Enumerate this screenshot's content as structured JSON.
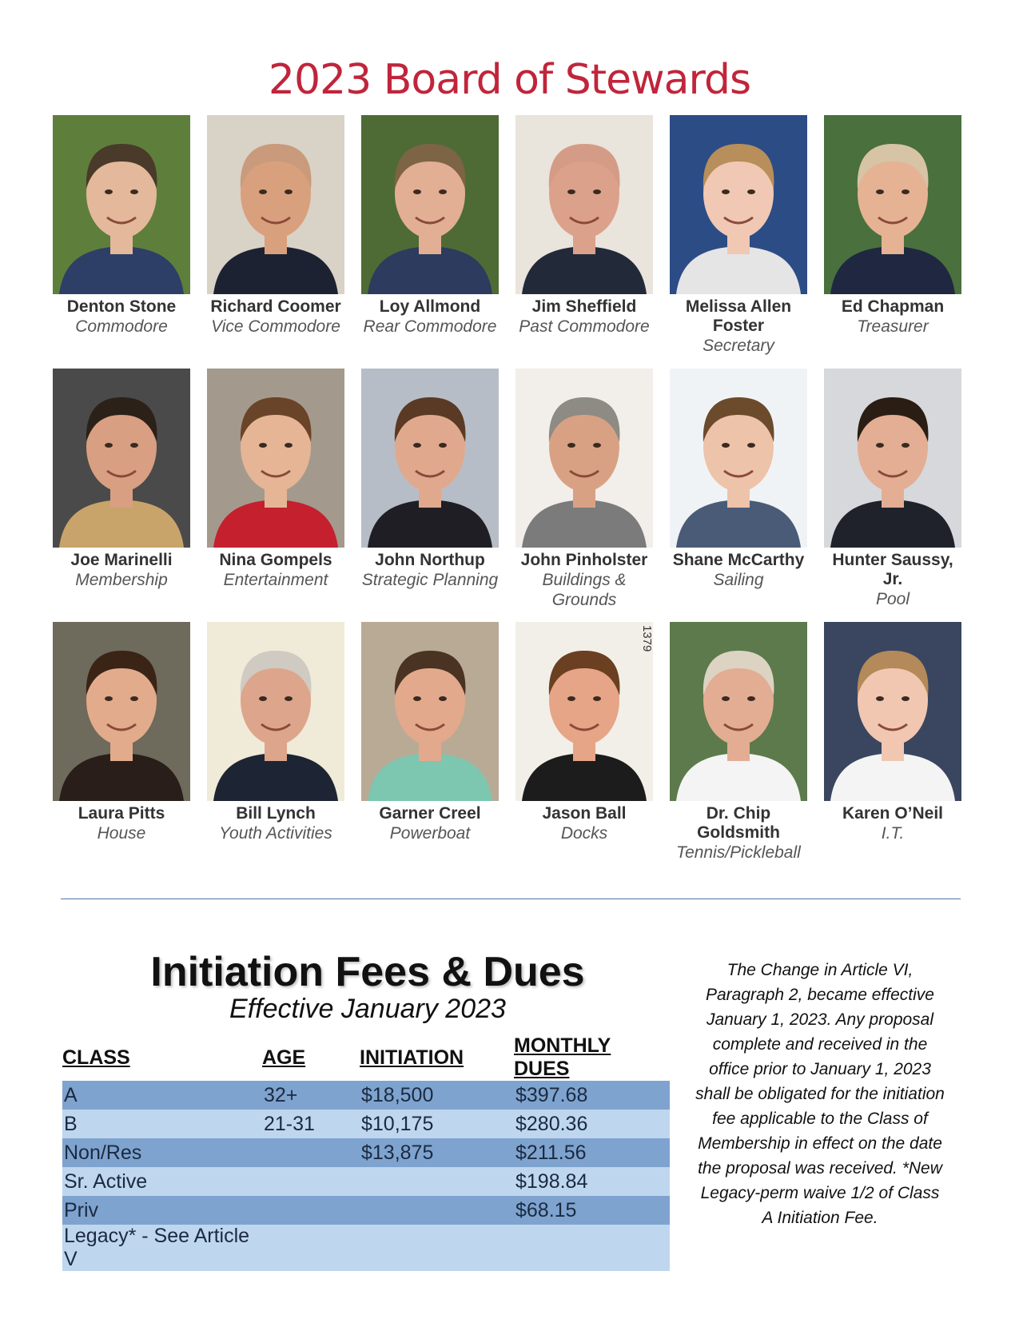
{
  "page_title": "2023 Board of Stewards",
  "side_code": "1379",
  "stewards": [
    {
      "name": "Denton Stone",
      "role": "Commodore",
      "bg": "#5e7f3b",
      "skin": "#e4b89b",
      "hair": "#4a3a2a",
      "shirt": "#2d3f66"
    },
    {
      "name": "Richard Coomer",
      "role": "Vice Commodore",
      "bg": "#d9d2c6",
      "skin": "#d9a07e",
      "hair": "#c99a7b",
      "shirt": "#1d2233"
    },
    {
      "name": "Loy Allmond",
      "role": "Rear Commodore",
      "bg": "#4e6b35",
      "skin": "#e2ae94",
      "hair": "#7c6444",
      "shirt": "#2c3b5e"
    },
    {
      "name": "Jim Sheffield",
      "role": "Past Commodore",
      "bg": "#e9e4dc",
      "skin": "#dca18a",
      "hair": "#d49c86",
      "shirt": "#222a3a"
    },
    {
      "name": "Melissa Allen Foster",
      "role": "Secretary",
      "bg": "#2c4c86",
      "skin": "#f0c8b3",
      "hair": "#b88e5a",
      "shirt": "#e5e5e5"
    },
    {
      "name": "Ed Chapman",
      "role": "Treasurer",
      "bg": "#49703d",
      "skin": "#e6b294",
      "hair": "#d7c3a6",
      "shirt": "#1f2840"
    },
    {
      "name": "Joe Marinelli",
      "role": "Membership",
      "bg": "#4a4a4a",
      "skin": "#d89f82",
      "hair": "#2b2118",
      "shirt": "#c8a46a"
    },
    {
      "name": "Nina Gompels",
      "role": "Entertainment",
      "bg": "#a39a8d",
      "skin": "#e6b596",
      "hair": "#6a4428",
      "shirt": "#c4202e"
    },
    {
      "name": "John Northup",
      "role": "Strategic Planning",
      "bg": "#b7bdc6",
      "skin": "#e0a98e",
      "hair": "#5a3a24",
      "shirt": "#1e1e24"
    },
    {
      "name": "John Pinholster",
      "role": "Buildings & Grounds",
      "bg": "#f2efea",
      "skin": "#d9a184",
      "hair": "#8e8a84",
      "shirt": "#7b7b7b"
    },
    {
      "name": "Shane McCarthy",
      "role": "Sailing",
      "bg": "#f0f3f6",
      "skin": "#edc3aa",
      "hair": "#6b4b2c",
      "shirt": "#4a5b78"
    },
    {
      "name": "Hunter Saussy, Jr.",
      "role": "Pool",
      "bg": "#d6d8db",
      "skin": "#e3ae93",
      "hair": "#2a1d14",
      "shirt": "#1f222b"
    },
    {
      "name": "Laura Pitts",
      "role": "House",
      "bg": "#6e6a5c",
      "skin": "#e2ab8b",
      "hair": "#3a2416",
      "shirt": "#2a1e1a"
    },
    {
      "name": "Bill Lynch",
      "role": "Youth Activities",
      "bg": "#f0ead8",
      "skin": "#dda58b",
      "hair": "#cfcac2",
      "shirt": "#1d2433"
    },
    {
      "name": "Garner Creel",
      "role": "Powerboat",
      "bg": "#b9aa95",
      "skin": "#e3a98c",
      "hair": "#4a3322",
      "shirt": "#7dc6b0"
    },
    {
      "name": "Jason Ball",
      "role": "Docks",
      "bg": "#f2efe8",
      "skin": "#e6a586",
      "hair": "#6a3f22",
      "shirt": "#1c1c1c"
    },
    {
      "name": "Dr. Chip Goldsmith",
      "role": "Tennis/Pickleball",
      "bg": "#5c7a4c",
      "skin": "#e2ad92",
      "hair": "#dcd3c2",
      "shirt": "#f4f4f4"
    },
    {
      "name": "Karen O’Neil",
      "role": "I.T.",
      "bg": "#3a4660",
      "skin": "#f1c7b1",
      "hair": "#b48a5a",
      "shirt": "#f4f4f4"
    }
  ],
  "fees": {
    "title": "Initiation Fees & Dues",
    "subtitle": "Effective January 2023",
    "headers": [
      "CLASS",
      "AGE",
      "INITIATION",
      "MONTHLY DUES"
    ],
    "rows": [
      [
        "A",
        "32+",
        "$18,500",
        "$397.68"
      ],
      [
        "B",
        "21-31",
        "$10,175",
        "$280.36"
      ],
      [
        "Non/Res",
        "",
        "$13,875",
        "$211.56"
      ],
      [
        "Sr. Active",
        "",
        "",
        "$198.84"
      ],
      [
        "Priv",
        "",
        "",
        "$68.15"
      ],
      [
        "Legacy* - See Article V",
        "",
        "",
        ""
      ]
    ],
    "row_colors": {
      "dark": "#7fa3cf",
      "light": "#bfd6ef"
    }
  },
  "note": "The Change in Article VI, Paragraph 2, became effective January 1, 2023. Any proposal complete and received in the office prior to January 1, 2023 shall be obligated for the initiation fee applicable to the Class of Membership in effect on the date the proposal was received. *New Legacy-perm waive 1/2 of Class A Initiation Fee.",
  "colors": {
    "title_red": "#c0253b",
    "rule_blue": "#4a79a6"
  }
}
